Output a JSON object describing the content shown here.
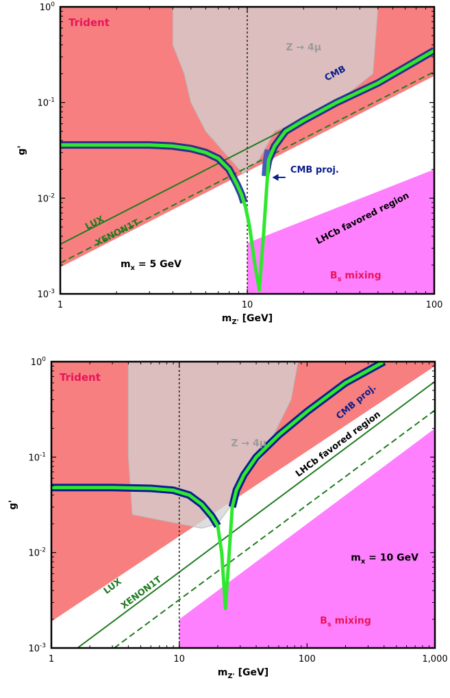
{
  "chart_data": [
    {
      "type": "line",
      "x_scale": "log",
      "y_scale": "log",
      "xlim": [
        1,
        100
      ],
      "ylim": [
        0.001,
        1
      ],
      "xlabel": "m_Z' [GeV]",
      "ylabel": "g'",
      "x_ticks": [
        "1",
        "10",
        "100"
      ],
      "y_ticks": [
        {
          "base": "10",
          "exp": "-3"
        },
        {
          "base": "10",
          "exp": "-2"
        },
        {
          "base": "10",
          "exp": "-1"
        },
        {
          "base": "10",
          "exp": "0"
        }
      ],
      "annotations": {
        "trident": "Trident",
        "z4mu": "Z → 4μ",
        "cmb": "CMB",
        "cmb_proj": "CMB proj.",
        "lhcb": "LHCb favored region",
        "lux": "LUX",
        "xenon": "XENON1T",
        "mass_label": "m",
        "mass_sub": "x",
        "mass_value": " = 5 GeV",
        "bs_label": "B",
        "bs_sub": "s",
        "bs_rest": " mixing"
      },
      "threshold_x": 10,
      "colors": {
        "trident": "#f77f7f",
        "z4mu": "#d3d3d3",
        "bs": "#ff80ff",
        "cmb": "#0a1e8c",
        "cmb_proj": "#4a5ab8",
        "relic": "#2ee82e",
        "lux": "#1f7a1f",
        "lhcb_fill": "#ffffff"
      },
      "regions": {
        "trident": {
          "x": [
            1,
            1,
            100,
            100
          ],
          "y": [
            0.0019,
            1,
            1,
            0.19
          ]
        },
        "z4mu": {
          "x": [
            4,
            4,
            50,
            47,
            26,
            14,
            11.5,
            10,
            9.5,
            6,
            5,
            4.6,
            4
          ],
          "y": [
            0.4,
            1,
            1,
            0.2,
            0.08,
            0.05,
            0.025,
            0.02,
            0.018,
            0.05,
            0.1,
            0.2,
            0.4
          ]
        },
        "bs_mixing": {
          "x": [
            10,
            10,
            100,
            100
          ],
          "y": [
            0.001,
            0.0034,
            0.02,
            0.001
          ]
        }
      },
      "series": [
        {
          "role": "cmb",
          "x": [
            1,
            2,
            3,
            4,
            5,
            6,
            7,
            8,
            8.8,
            9.3,
            9.6
          ],
          "y": [
            0.036,
            0.036,
            0.036,
            0.035,
            0.033,
            0.03,
            0.026,
            0.02,
            0.014,
            0.011,
            0.009
          ]
        },
        {
          "role": "cmb",
          "x": [
            12.5,
            13,
            14,
            16,
            20,
            30,
            50,
            100
          ],
          "y": [
            0.017,
            0.025,
            0.035,
            0.05,
            0.065,
            0.1,
            0.16,
            0.35
          ]
        },
        {
          "role": "cmb_proj",
          "x": [
            12.5,
            12.7,
            13
          ],
          "y": [
            0.017,
            0.025,
            0.032
          ]
        },
        {
          "role": "relic",
          "x": [
            1,
            2,
            3,
            4,
            5,
            6,
            7,
            8,
            8.8,
            9.3,
            9.8,
            10.3,
            11,
            11.6,
            12.2,
            13,
            14,
            16,
            20,
            30,
            50,
            100
          ],
          "y": [
            0.036,
            0.036,
            0.036,
            0.035,
            0.033,
            0.03,
            0.026,
            0.02,
            0.014,
            0.011,
            0.008,
            0.005,
            0.002,
            0.0011,
            0.004,
            0.025,
            0.035,
            0.05,
            0.065,
            0.1,
            0.16,
            0.35
          ]
        },
        {
          "role": "lux",
          "x": [
            1,
            100
          ],
          "y": [
            0.0033,
            0.33
          ]
        },
        {
          "role": "xenon",
          "x": [
            1,
            100
          ],
          "y": [
            0.0021,
            0.21
          ]
        }
      ],
      "arrow": {
        "from": [
          16,
          0.0165
        ],
        "to": [
          13.6,
          0.0165
        ]
      }
    },
    {
      "type": "line",
      "x_scale": "log",
      "y_scale": "log",
      "xlim": [
        1,
        1000
      ],
      "ylim": [
        0.001,
        1
      ],
      "xlabel": "m_Z' [GeV]",
      "ylabel": "g'",
      "x_ticks": [
        "1",
        "10",
        "100",
        "1,000"
      ],
      "y_ticks": [
        {
          "base": "10",
          "exp": "-3"
        },
        {
          "base": "10",
          "exp": "-2"
        },
        {
          "base": "10",
          "exp": "-1"
        },
        {
          "base": "10",
          "exp": "0"
        }
      ],
      "annotations": {
        "trident": "Trident",
        "z4mu": "Z → 4μ",
        "cmb_proj": "CMB proj.",
        "lhcb": "LHCb favored region",
        "lux": "LUX",
        "xenon": "XENON1T",
        "mass_label": "m",
        "mass_sub": "x",
        "mass_value": " = 10 GeV",
        "bs_label": "B",
        "bs_sub": "s",
        "bs_rest": " mixing"
      },
      "threshold_x": 10,
      "colors": {
        "trident": "#f77f7f",
        "z4mu": "#d3d3d3",
        "bs": "#ff80ff",
        "cmb": "#0a1e8c",
        "cmb_proj": "#0a1e8c",
        "relic": "#2ee82e",
        "lux": "#1f7a1f",
        "lhcb_fill": "#ffffff"
      },
      "regions": {
        "trident": {
          "x": [
            1,
            1,
            1000,
            1000
          ],
          "y": [
            0.0019,
            1,
            1,
            0.9
          ]
        },
        "lhcb_band": {
          "x": [
            1,
            1000,
            1000,
            1
          ],
          "y": [
            0.0008,
            0.8,
            0.21,
            0.00021
          ]
        },
        "z4mu": {
          "x": [
            4,
            4,
            85,
            75,
            45,
            30,
            25,
            20,
            15,
            4.3,
            4
          ],
          "y": [
            0.1,
            1,
            1,
            0.4,
            0.1,
            0.06,
            0.03,
            0.02,
            0.018,
            0.025,
            0.1
          ]
        },
        "bs_mixing": {
          "x": [
            10,
            10,
            1000,
            1000
          ],
          "y": [
            0.001,
            0.002,
            0.2,
            0.001
          ]
        }
      },
      "series": [
        {
          "role": "cmb_proj",
          "x": [
            1,
            3,
            6,
            9,
            12,
            15,
            18,
            20
          ],
          "y": [
            0.048,
            0.048,
            0.047,
            0.045,
            0.04,
            0.032,
            0.024,
            0.019
          ]
        },
        {
          "role": "cmb_proj",
          "x": [
            26,
            28,
            32,
            40,
            60,
            100,
            200,
            400
          ],
          "y": [
            0.03,
            0.045,
            0.065,
            0.1,
            0.17,
            0.3,
            0.6,
            1.0
          ]
        },
        {
          "role": "relic",
          "x": [
            1,
            3,
            6,
            9,
            12,
            15,
            18,
            20,
            21.5,
            22.5,
            23,
            24,
            26,
            28,
            32,
            40,
            60,
            100,
            200,
            400
          ],
          "y": [
            0.048,
            0.048,
            0.047,
            0.045,
            0.04,
            0.032,
            0.024,
            0.019,
            0.01,
            0.004,
            0.0026,
            0.006,
            0.03,
            0.045,
            0.065,
            0.1,
            0.17,
            0.3,
            0.6,
            1.0
          ]
        },
        {
          "role": "lux",
          "x": [
            1.6,
            1000
          ],
          "y": [
            0.001,
            0.62
          ]
        },
        {
          "role": "xenon",
          "x": [
            3.1,
            1000
          ],
          "y": [
            0.001,
            0.31
          ]
        }
      ]
    }
  ]
}
